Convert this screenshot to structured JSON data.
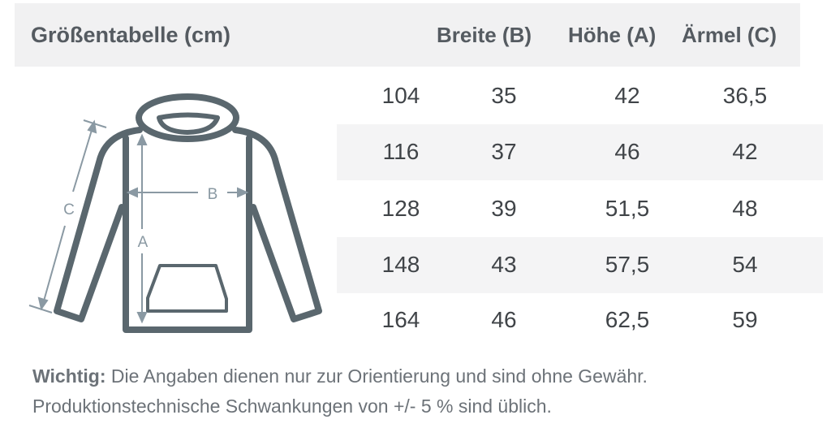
{
  "header": {
    "title": "Größentabelle (cm)",
    "columns": [
      "Breite (B)",
      "Höhe (A)",
      "Ärmel (C)"
    ]
  },
  "rows": [
    [
      "104",
      "35",
      "42",
      "36,5"
    ],
    [
      "116",
      "37",
      "46",
      "42"
    ],
    [
      "128",
      "39",
      "51,5",
      "48"
    ],
    [
      "148",
      "43",
      "57,5",
      "54"
    ],
    [
      "164",
      "46",
      "62,5",
      "59"
    ]
  ],
  "diagram": {
    "labels": {
      "a": "A",
      "b": "B",
      "c": "C"
    },
    "icon": "hoodie-icon"
  },
  "note": {
    "bold": "Wichtig:",
    "line1": " Die Angaben dienen nur zur Orientierung und sind ohne Gewähr.",
    "line2": "Produktionstechnische Schwankungen von +/- 5 % sind üblich."
  },
  "colors": {
    "outline": "#5a676e",
    "measure": "#8a99a3",
    "header_bg": "#f1f1f2",
    "stripe": "#f4f4f5"
  }
}
